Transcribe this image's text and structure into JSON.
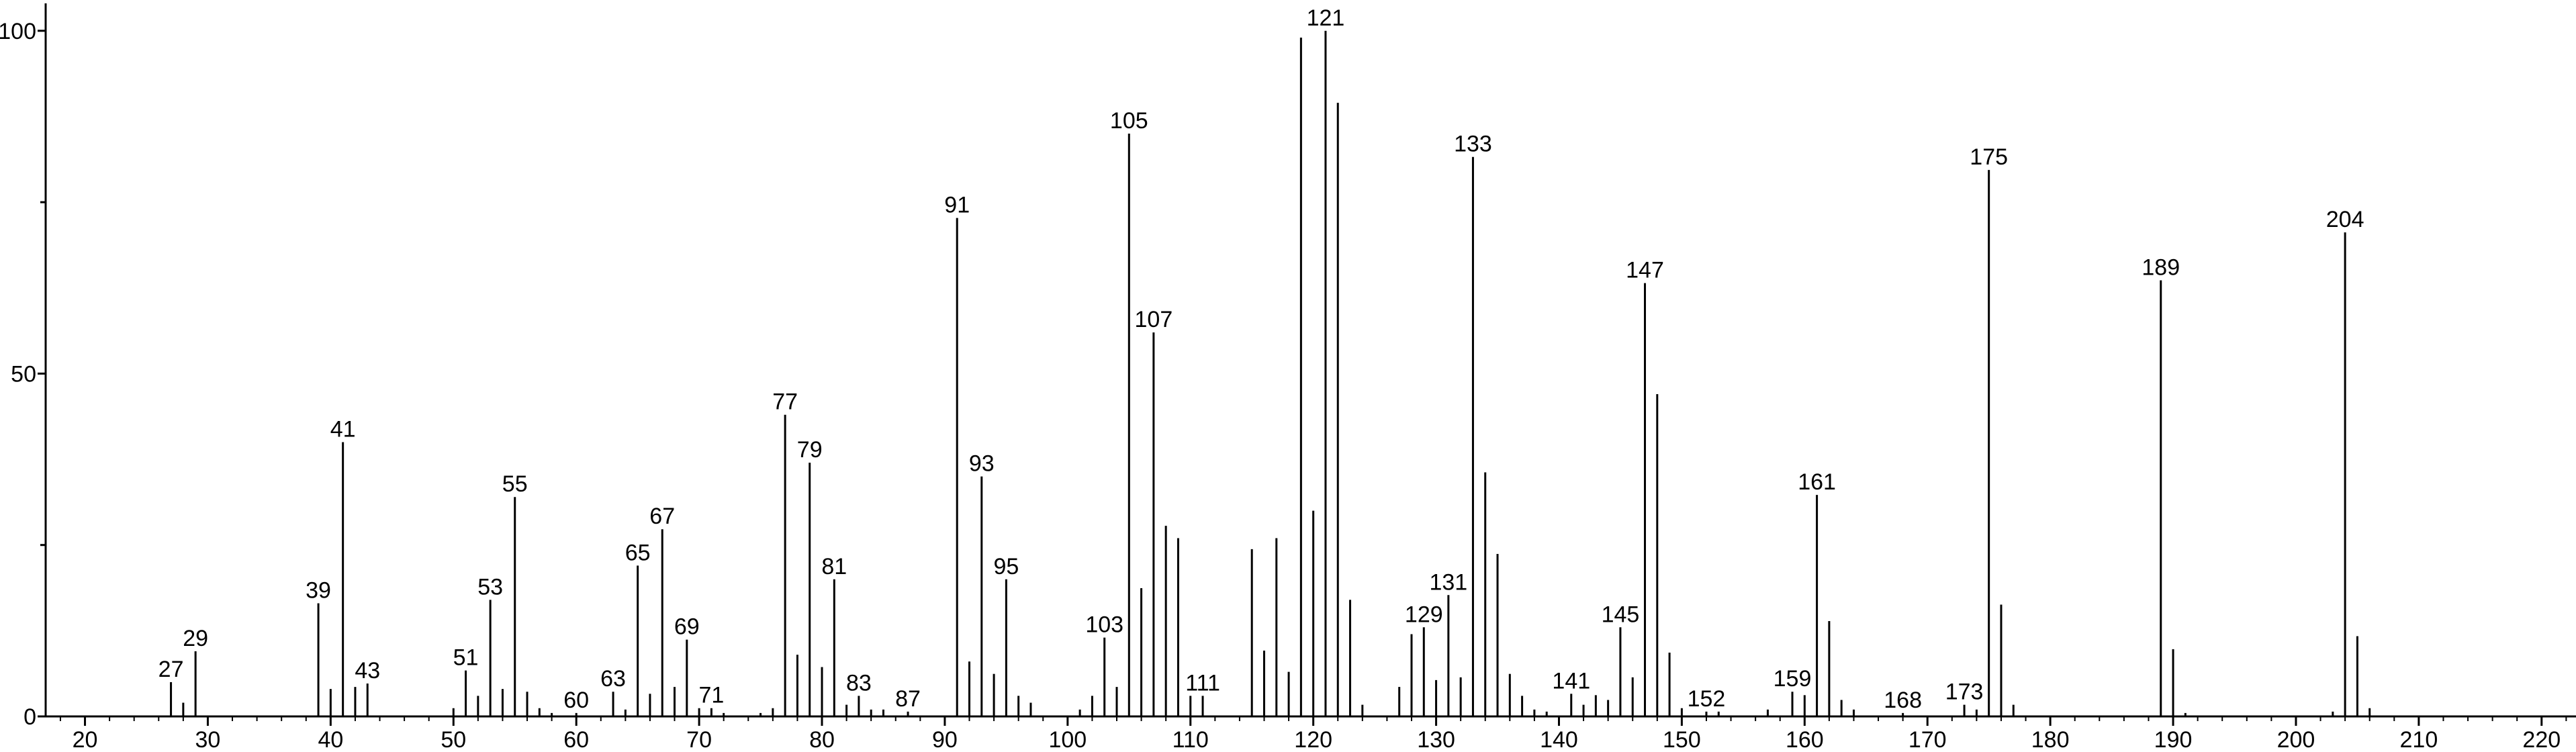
{
  "chart_data": {
    "type": "spectrum",
    "x": [
      27,
      28,
      29,
      39,
      40,
      41,
      42,
      43,
      50,
      51,
      52,
      53,
      54,
      55,
      56,
      57,
      58,
      60,
      63,
      64,
      65,
      66,
      67,
      68,
      69,
      70,
      71,
      72,
      75,
      76,
      77,
      78,
      79,
      80,
      81,
      82,
      83,
      84,
      85,
      87,
      91,
      92,
      93,
      94,
      95,
      96,
      97,
      101,
      102,
      103,
      104,
      105,
      106,
      107,
      108,
      109,
      110,
      111,
      115,
      116,
      117,
      118,
      119,
      120,
      121,
      122,
      123,
      124,
      127,
      128,
      129,
      130,
      131,
      132,
      133,
      134,
      135,
      136,
      137,
      138,
      139,
      141,
      142,
      143,
      144,
      145,
      146,
      147,
      148,
      149,
      150,
      152,
      153,
      157,
      159,
      160,
      161,
      162,
      163,
      164,
      168,
      173,
      174,
      175,
      176,
      177,
      189,
      190,
      191,
      203,
      204,
      205,
      206
    ],
    "values": [
      5,
      2,
      9.5,
      16.5,
      4,
      40,
      4.3,
      4.8,
      1.2,
      6.7,
      3,
      17,
      4,
      32,
      3.6,
      1.2,
      0.5,
      0.5,
      3.6,
      1,
      22,
      3.3,
      27.3,
      4.3,
      11.2,
      1.2,
      1.2,
      0.5,
      0.5,
      1.2,
      44,
      9,
      37,
      7.2,
      20,
      1.7,
      3,
      1,
      1,
      0.7,
      72.7,
      8,
      35,
      6.2,
      20,
      3,
      2,
      1,
      3,
      11.5,
      4.3,
      85,
      18.7,
      56,
      27.8,
      26,
      3,
      3,
      24.4,
      9.6,
      26,
      6.5,
      99,
      30,
      100,
      89.5,
      17,
      1.7,
      4.3,
      12,
      13,
      5.3,
      17.7,
      5.7,
      81.6,
      35.6,
      23.7,
      6.2,
      3,
      1,
      0.7,
      3.3,
      1.7,
      3.1,
      2.4,
      13,
      5.7,
      63.2,
      47,
      9.3,
      1.2,
      0.7,
      0.7,
      1,
      3.6,
      3.1,
      32.3,
      13.9,
      2.4,
      1,
      0.5,
      1.7,
      1,
      79.7,
      16.3,
      1.7,
      63.6,
      9.8,
      0.5,
      0.7,
      70.6,
      11.7,
      1.2
    ],
    "peak_labels": [
      27,
      29,
      39,
      41,
      43,
      51,
      53,
      55,
      60,
      63,
      65,
      67,
      69,
      71,
      77,
      79,
      81,
      83,
      87,
      91,
      93,
      95,
      103,
      105,
      107,
      111,
      121,
      129,
      131,
      133,
      141,
      145,
      147,
      152,
      159,
      161,
      168,
      173,
      175,
      189,
      204
    ],
    "color": "#000000",
    "xlim": [
      16.8,
      222.8
    ],
    "xticks": [
      20,
      30,
      40,
      50,
      60,
      70,
      80,
      90,
      100,
      110,
      120,
      130,
      140,
      150,
      160,
      170,
      180,
      190,
      200,
      210,
      220
    ],
    "xminorticks": [
      18,
      22,
      24,
      26,
      28,
      32,
      34,
      36,
      38,
      42,
      44,
      46,
      48,
      52,
      54,
      56,
      58,
      62,
      64,
      66,
      68,
      72,
      74,
      76,
      78,
      82,
      84,
      86,
      88,
      92,
      94,
      96,
      98,
      102,
      104,
      106,
      108,
      112,
      114,
      116,
      118,
      122,
      124,
      126,
      128,
      132,
      134,
      136,
      138,
      142,
      144,
      146,
      148,
      152,
      154,
      156,
      158,
      162,
      164,
      166,
      168,
      172,
      174,
      176,
      178,
      182,
      184,
      186,
      188,
      192,
      194,
      196,
      198,
      202,
      204,
      206,
      208,
      212,
      214,
      216,
      218,
      222
    ],
    "ylim": [
      0,
      104
    ],
    "yticks": [
      0,
      50,
      100
    ],
    "yminorticks": [
      25,
      75
    ]
  }
}
